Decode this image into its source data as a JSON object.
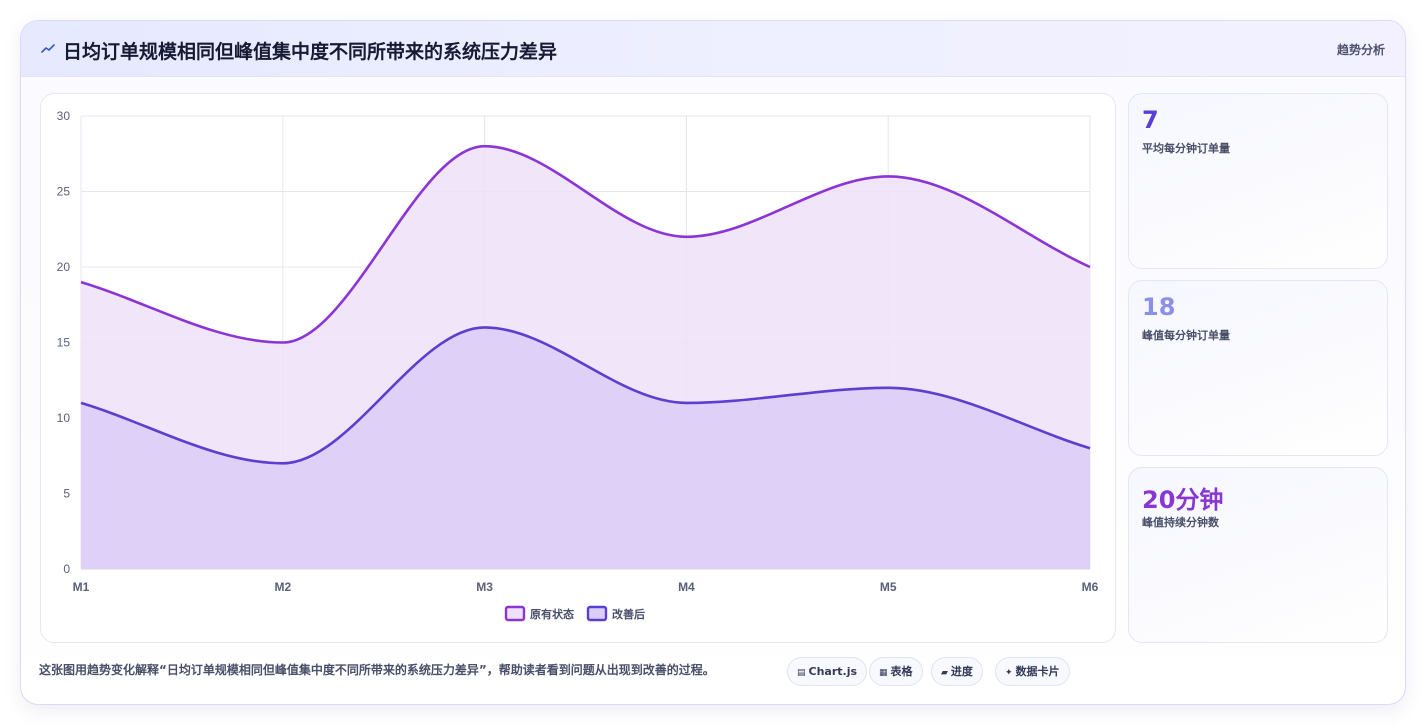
{
  "header": {
    "icon": "trend-line-icon",
    "title": "日均订单规模相同但峰值集中度不同所带来的系统压力差异",
    "tag": "趋势分析"
  },
  "chart_data": {
    "type": "area",
    "categories": [
      "M1",
      "M2",
      "M3",
      "M4",
      "M5",
      "M6"
    ],
    "series": [
      {
        "name": "原有状态",
        "values": [
          19,
          15,
          28,
          22,
          26,
          20
        ],
        "color": "#8b35d6",
        "fill": "#eee1f8"
      },
      {
        "name": "改善后",
        "values": [
          11,
          7,
          16,
          11,
          12,
          8
        ],
        "color": "#5a3fd0",
        "fill": "#dccdf7"
      }
    ],
    "ylim": [
      0,
      30
    ],
    "yticks": [
      0,
      5,
      10,
      15,
      20,
      25,
      30
    ],
    "grid": true,
    "legend_position": "bottom",
    "curve": "smooth"
  },
  "stats": [
    {
      "value": "7",
      "label": "平均每分钟订单量",
      "color": "#5b3fd4"
    },
    {
      "value": "18",
      "label": "峰值每分钟订单量",
      "color": "#8b8fe6"
    },
    {
      "value": "20分钟",
      "label": "峰值持续分钟数",
      "color": "#8a36d3"
    }
  ],
  "footer": {
    "description": "这张图用趋势变化解释“日均订单规模相同但峰值集中度不同所带来的系统压力差异”，帮助读者看到问题从出现到改善的过程。",
    "chips": [
      {
        "icon": "chart-icon",
        "glyph": "▤",
        "label": "Chart.js"
      },
      {
        "icon": "table-icon",
        "glyph": "▦",
        "label": "表格"
      },
      {
        "icon": "progress-icon",
        "glyph": "▰",
        "label": "进度"
      },
      {
        "icon": "card-icon",
        "glyph": "✦",
        "label": "数据卡片"
      }
    ]
  }
}
